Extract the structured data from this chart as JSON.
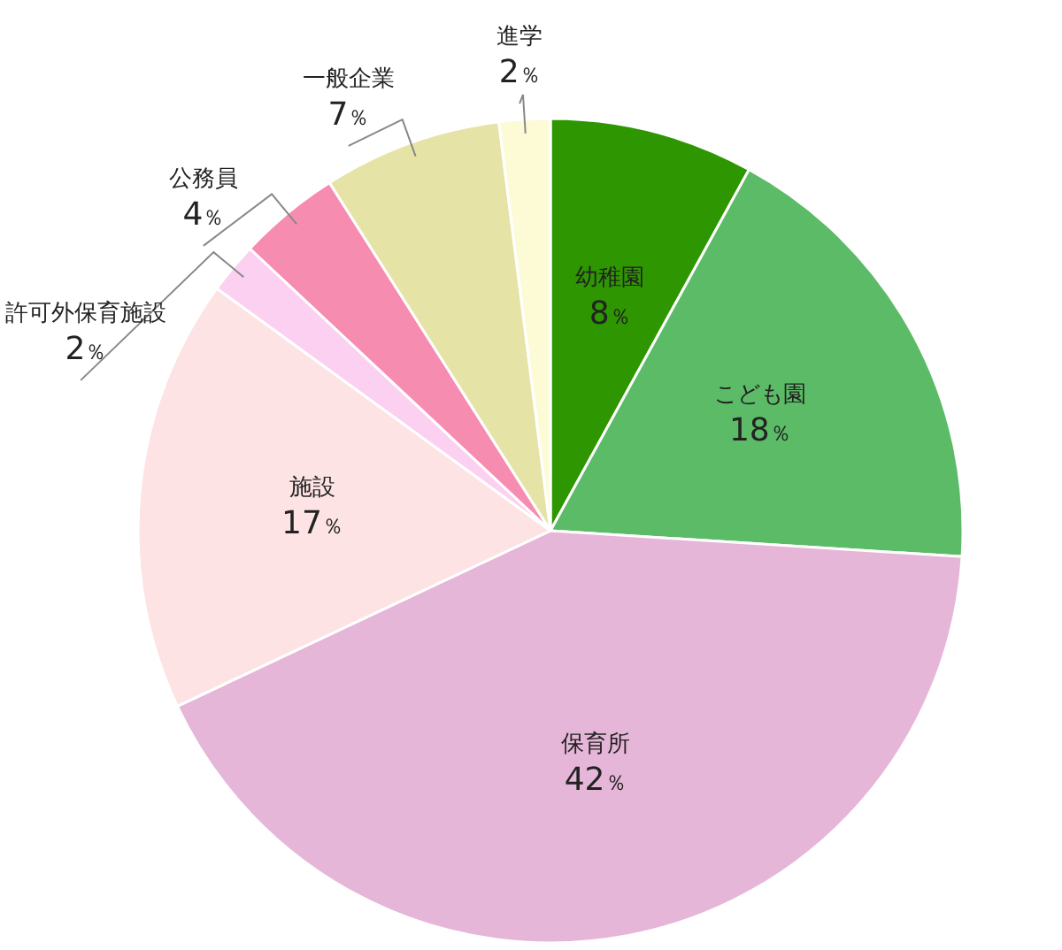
{
  "chart_data": {
    "type": "pie",
    "categories": [
      "幼稚園",
      "こども園",
      "保育所",
      "施設",
      "許可外保育施設",
      "公務員",
      "一般企業",
      "進学"
    ],
    "values": [
      8,
      18,
      42,
      17,
      2,
      4,
      7,
      2
    ],
    "value_labels": [
      "8％",
      "18％",
      "42％",
      "17％",
      "2％",
      "4％",
      "7％",
      "2％"
    ],
    "colors": [
      "#2e9600",
      "#5bbb66",
      "#e6b6d8",
      "#fde3e3",
      "#fcd0f0",
      "#f78cb1",
      "#e6e3a6",
      "#fdfbd5"
    ]
  }
}
